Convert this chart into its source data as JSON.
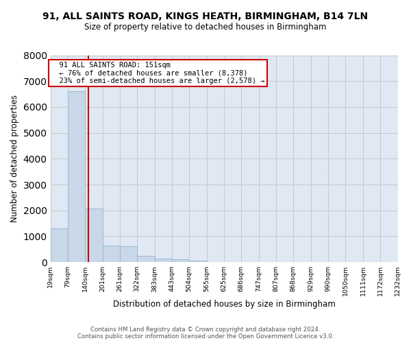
{
  "title": "91, ALL SAINTS ROAD, KINGS HEATH, BIRMINGHAM, B14 7LN",
  "subtitle": "Size of property relative to detached houses in Birmingham",
  "xlabel": "Distribution of detached houses by size in Birmingham",
  "ylabel": "Number of detached properties",
  "footer1": "Contains HM Land Registry data © Crown copyright and database right 2024.",
  "footer2": "Contains public sector information licensed under the Open Government Licence v3.0.",
  "annotation_title": "91 ALL SAINTS ROAD: 151sqm",
  "annotation_line1": "← 76% of detached houses are smaller (8,378)",
  "annotation_line2": "23% of semi-detached houses are larger (2,578) →",
  "bar_color": "#c8d8e8",
  "bar_edge_color": "#9ab8d0",
  "grid_color": "#c8c8c8",
  "bg_color": "#e0e8f4",
  "red_line_color": "#cc0000",
  "annotation_box_color": "#cc0000",
  "bins": [
    19,
    79,
    140,
    201,
    261,
    322,
    383,
    443,
    504,
    565,
    625,
    686,
    747,
    807,
    868,
    929,
    990,
    1050,
    1111,
    1172,
    1232
  ],
  "counts": [
    1300,
    6600,
    2080,
    650,
    620,
    255,
    130,
    100,
    65,
    0,
    0,
    0,
    0,
    0,
    0,
    0,
    0,
    0,
    0,
    0
  ],
  "property_size": 151,
  "ylim": [
    0,
    8000
  ],
  "yticks": [
    0,
    1000,
    2000,
    3000,
    4000,
    5000,
    6000,
    7000,
    8000
  ]
}
